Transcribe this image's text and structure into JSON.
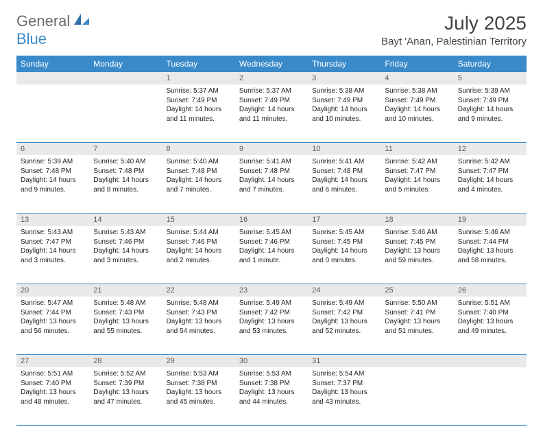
{
  "logo": {
    "text1": "General",
    "text2": "Blue"
  },
  "title": "July 2025",
  "location": "Bayt 'Anan, Palestinian Territory",
  "colors": {
    "header_bg": "#3a8ac9",
    "header_text": "#ffffff",
    "daynum_bg": "#e9e9e9",
    "week_border": "#3a8ac9",
    "page_bg": "#ffffff"
  },
  "day_labels": [
    "Sunday",
    "Monday",
    "Tuesday",
    "Wednesday",
    "Thursday",
    "Friday",
    "Saturday"
  ],
  "weeks": [
    [
      {
        "n": "",
        "sr": "",
        "ss": "",
        "dl": ""
      },
      {
        "n": "",
        "sr": "",
        "ss": "",
        "dl": ""
      },
      {
        "n": "1",
        "sr": "Sunrise: 5:37 AM",
        "ss": "Sunset: 7:49 PM",
        "dl": "Daylight: 14 hours and 11 minutes."
      },
      {
        "n": "2",
        "sr": "Sunrise: 5:37 AM",
        "ss": "Sunset: 7:49 PM",
        "dl": "Daylight: 14 hours and 11 minutes."
      },
      {
        "n": "3",
        "sr": "Sunrise: 5:38 AM",
        "ss": "Sunset: 7:49 PM",
        "dl": "Daylight: 14 hours and 10 minutes."
      },
      {
        "n": "4",
        "sr": "Sunrise: 5:38 AM",
        "ss": "Sunset: 7:49 PM",
        "dl": "Daylight: 14 hours and 10 minutes."
      },
      {
        "n": "5",
        "sr": "Sunrise: 5:39 AM",
        "ss": "Sunset: 7:49 PM",
        "dl": "Daylight: 14 hours and 9 minutes."
      }
    ],
    [
      {
        "n": "6",
        "sr": "Sunrise: 5:39 AM",
        "ss": "Sunset: 7:48 PM",
        "dl": "Daylight: 14 hours and 9 minutes."
      },
      {
        "n": "7",
        "sr": "Sunrise: 5:40 AM",
        "ss": "Sunset: 7:48 PM",
        "dl": "Daylight: 14 hours and 8 minutes."
      },
      {
        "n": "8",
        "sr": "Sunrise: 5:40 AM",
        "ss": "Sunset: 7:48 PM",
        "dl": "Daylight: 14 hours and 7 minutes."
      },
      {
        "n": "9",
        "sr": "Sunrise: 5:41 AM",
        "ss": "Sunset: 7:48 PM",
        "dl": "Daylight: 14 hours and 7 minutes."
      },
      {
        "n": "10",
        "sr": "Sunrise: 5:41 AM",
        "ss": "Sunset: 7:48 PM",
        "dl": "Daylight: 14 hours and 6 minutes."
      },
      {
        "n": "11",
        "sr": "Sunrise: 5:42 AM",
        "ss": "Sunset: 7:47 PM",
        "dl": "Daylight: 14 hours and 5 minutes."
      },
      {
        "n": "12",
        "sr": "Sunrise: 5:42 AM",
        "ss": "Sunset: 7:47 PM",
        "dl": "Daylight: 14 hours and 4 minutes."
      }
    ],
    [
      {
        "n": "13",
        "sr": "Sunrise: 5:43 AM",
        "ss": "Sunset: 7:47 PM",
        "dl": "Daylight: 14 hours and 3 minutes."
      },
      {
        "n": "14",
        "sr": "Sunrise: 5:43 AM",
        "ss": "Sunset: 7:46 PM",
        "dl": "Daylight: 14 hours and 3 minutes."
      },
      {
        "n": "15",
        "sr": "Sunrise: 5:44 AM",
        "ss": "Sunset: 7:46 PM",
        "dl": "Daylight: 14 hours and 2 minutes."
      },
      {
        "n": "16",
        "sr": "Sunrise: 5:45 AM",
        "ss": "Sunset: 7:46 PM",
        "dl": "Daylight: 14 hours and 1 minute."
      },
      {
        "n": "17",
        "sr": "Sunrise: 5:45 AM",
        "ss": "Sunset: 7:45 PM",
        "dl": "Daylight: 14 hours and 0 minutes."
      },
      {
        "n": "18",
        "sr": "Sunrise: 5:46 AM",
        "ss": "Sunset: 7:45 PM",
        "dl": "Daylight: 13 hours and 59 minutes."
      },
      {
        "n": "19",
        "sr": "Sunrise: 5:46 AM",
        "ss": "Sunset: 7:44 PM",
        "dl": "Daylight: 13 hours and 58 minutes."
      }
    ],
    [
      {
        "n": "20",
        "sr": "Sunrise: 5:47 AM",
        "ss": "Sunset: 7:44 PM",
        "dl": "Daylight: 13 hours and 56 minutes."
      },
      {
        "n": "21",
        "sr": "Sunrise: 5:48 AM",
        "ss": "Sunset: 7:43 PM",
        "dl": "Daylight: 13 hours and 55 minutes."
      },
      {
        "n": "22",
        "sr": "Sunrise: 5:48 AM",
        "ss": "Sunset: 7:43 PM",
        "dl": "Daylight: 13 hours and 54 minutes."
      },
      {
        "n": "23",
        "sr": "Sunrise: 5:49 AM",
        "ss": "Sunset: 7:42 PM",
        "dl": "Daylight: 13 hours and 53 minutes."
      },
      {
        "n": "24",
        "sr": "Sunrise: 5:49 AM",
        "ss": "Sunset: 7:42 PM",
        "dl": "Daylight: 13 hours and 52 minutes."
      },
      {
        "n": "25",
        "sr": "Sunrise: 5:50 AM",
        "ss": "Sunset: 7:41 PM",
        "dl": "Daylight: 13 hours and 51 minutes."
      },
      {
        "n": "26",
        "sr": "Sunrise: 5:51 AM",
        "ss": "Sunset: 7:40 PM",
        "dl": "Daylight: 13 hours and 49 minutes."
      }
    ],
    [
      {
        "n": "27",
        "sr": "Sunrise: 5:51 AM",
        "ss": "Sunset: 7:40 PM",
        "dl": "Daylight: 13 hours and 48 minutes."
      },
      {
        "n": "28",
        "sr": "Sunrise: 5:52 AM",
        "ss": "Sunset: 7:39 PM",
        "dl": "Daylight: 13 hours and 47 minutes."
      },
      {
        "n": "29",
        "sr": "Sunrise: 5:53 AM",
        "ss": "Sunset: 7:38 PM",
        "dl": "Daylight: 13 hours and 45 minutes."
      },
      {
        "n": "30",
        "sr": "Sunrise: 5:53 AM",
        "ss": "Sunset: 7:38 PM",
        "dl": "Daylight: 13 hours and 44 minutes."
      },
      {
        "n": "31",
        "sr": "Sunrise: 5:54 AM",
        "ss": "Sunset: 7:37 PM",
        "dl": "Daylight: 13 hours and 43 minutes."
      },
      {
        "n": "",
        "sr": "",
        "ss": "",
        "dl": ""
      },
      {
        "n": "",
        "sr": "",
        "ss": "",
        "dl": ""
      }
    ]
  ]
}
